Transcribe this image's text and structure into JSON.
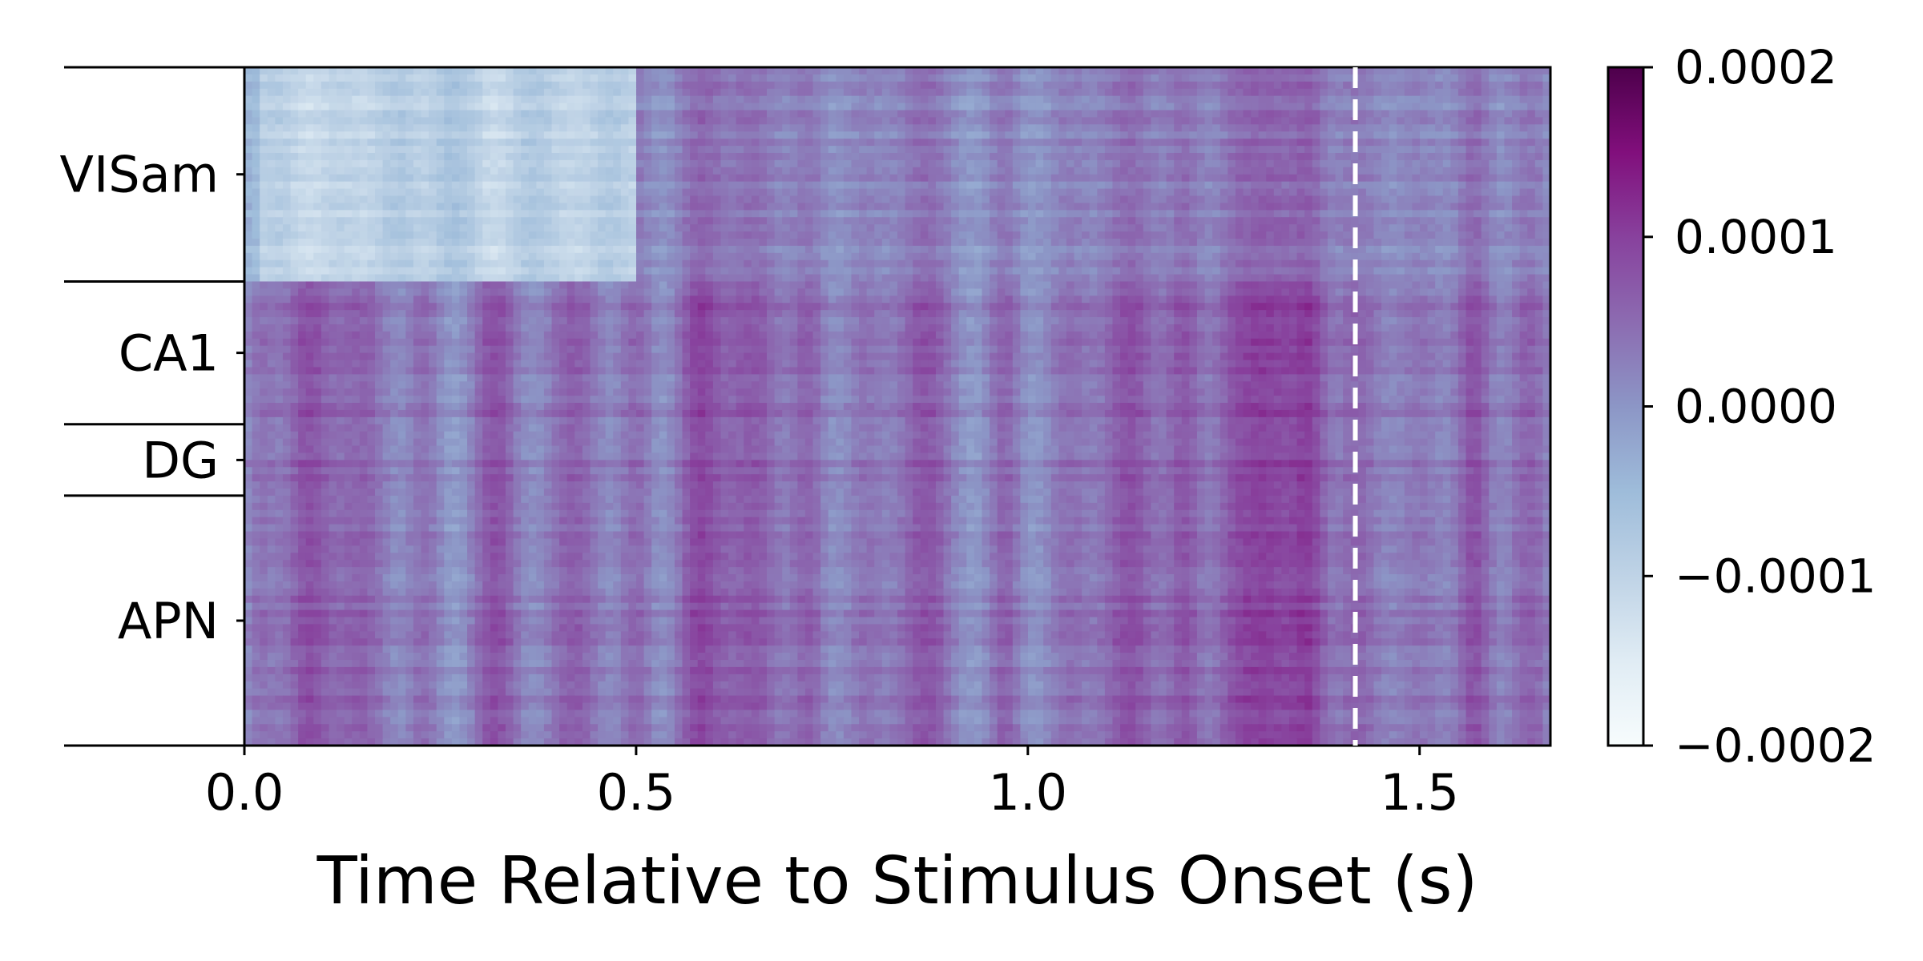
{
  "chart_data": {
    "type": "heatmap",
    "title": "",
    "xlabel": "Time Relative to Stimulus Onset (s)",
    "ylabel": "",
    "xlim": [
      0.0,
      1.667
    ],
    "x_ticks": [
      "0.0",
      "0.5",
      "1.0",
      "1.5"
    ],
    "x_tick_values": [
      0.0,
      0.5,
      1.0,
      1.5
    ],
    "regions": [
      {
        "name": "VISam",
        "rows": 30
      },
      {
        "name": "CA1",
        "rows": 20
      },
      {
        "name": "DG",
        "rows": 10
      },
      {
        "name": "APN",
        "rows": 35
      }
    ],
    "vertical_marker": {
      "x": 1.418,
      "style": "dashed",
      "color": "#ffffff"
    },
    "colorbar": {
      "colormap": "BuPu",
      "min": -0.0002,
      "max": 0.0002,
      "ticks": [
        "0.0002",
        "0.0001",
        "0.0000",
        "−0.0001",
        "−0.0002"
      ],
      "tick_values": [
        0.0002,
        0.0001,
        0.0,
        -0.0001,
        -0.0002
      ]
    },
    "band_times": [
      0.02,
      0.08,
      0.15,
      0.23,
      0.32,
      0.42,
      0.5,
      0.58,
      0.65,
      0.72,
      0.79,
      0.87,
      0.97,
      1.05,
      1.13,
      1.2,
      1.26,
      1.31,
      1.36,
      1.42,
      1.5,
      1.57,
      1.64
    ]
  }
}
